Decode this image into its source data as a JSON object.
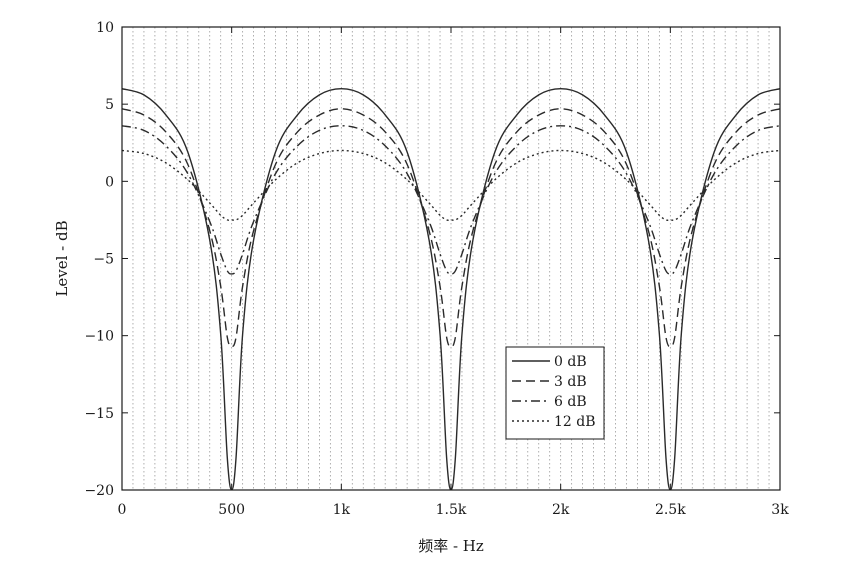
{
  "chart_data": {
    "type": "line",
    "xlabel": "频率 - Hz",
    "ylabel": "Level - dB",
    "xlim": [
      0,
      3000
    ],
    "ylim": [
      -20,
      10
    ],
    "x_ticks": [
      0,
      500,
      1000,
      1500,
      2000,
      2500,
      3000
    ],
    "x_tick_labels": [
      "0",
      "500",
      "1k",
      "1.5k",
      "2k",
      "2.5k",
      "3k"
    ],
    "y_ticks": [
      -20,
      -15,
      -10,
      -5,
      0,
      5,
      10
    ],
    "y_tick_labels": [
      "−20",
      "−15",
      "−10",
      "−5",
      "0",
      "5",
      "10"
    ],
    "grid": "vertical dotted lines every 50 Hz",
    "legend_position": "lower-right",
    "x": [
      0,
      100,
      200,
      300,
      400,
      450,
      480,
      500,
      520,
      550,
      600,
      700,
      800,
      900,
      1000,
      1100,
      1200,
      1300,
      1400,
      1450,
      1480,
      1500,
      1520,
      1550,
      1600,
      1700,
      1800,
      1900,
      2000,
      2100,
      2200,
      2300,
      2400,
      2450,
      2480,
      2500,
      2520,
      2550,
      2600,
      2700,
      2800,
      2900,
      3000
    ],
    "series": [
      {
        "name": "0 dB",
        "color": "#2a2a2a",
        "dash": "solid",
        "values": [
          6.0,
          5.6,
          4.3,
          1.9,
          -3.8,
          -9.9,
          -17.9,
          -20,
          -17.9,
          -9.9,
          -3.8,
          1.9,
          4.3,
          5.6,
          6.0,
          5.6,
          4.3,
          1.9,
          -3.8,
          -9.9,
          -17.9,
          -20,
          -17.9,
          -9.9,
          -3.8,
          1.9,
          4.3,
          5.6,
          6.0,
          5.6,
          4.3,
          1.9,
          -3.8,
          -9.9,
          -17.9,
          -20,
          -17.9,
          -9.9,
          -3.8,
          1.9,
          4.3,
          5.6,
          6.0
        ]
      },
      {
        "name": "3 dB",
        "color": "#2a2a2a",
        "dash": "dashed",
        "values": [
          4.7,
          4.3,
          3.2,
          1.1,
          -3.2,
          -6.8,
          -10.1,
          -10.7,
          -10.1,
          -6.8,
          -3.2,
          1.1,
          3.2,
          4.3,
          4.7,
          4.3,
          3.2,
          1.1,
          -3.2,
          -6.8,
          -10.1,
          -10.7,
          -10.1,
          -6.8,
          -3.2,
          1.1,
          3.2,
          4.3,
          4.7,
          4.3,
          3.2,
          1.1,
          -3.2,
          -6.8,
          -10.1,
          -10.7,
          -10.1,
          -6.8,
          -3.2,
          1.1,
          3.2,
          4.3,
          4.7
        ]
      },
      {
        "name": "6 dB",
        "color": "#2a2a2a",
        "dash": "dashdot",
        "values": [
          3.6,
          3.3,
          2.3,
          0.5,
          -2.6,
          -4.7,
          -5.8,
          -6.0,
          -5.8,
          -4.7,
          -2.6,
          0.5,
          2.3,
          3.3,
          3.6,
          3.3,
          2.3,
          0.5,
          -2.6,
          -4.7,
          -5.8,
          -6.0,
          -5.8,
          -4.7,
          -2.6,
          0.5,
          2.3,
          3.3,
          3.6,
          3.3,
          2.3,
          0.5,
          -2.6,
          -4.7,
          -5.8,
          -6.0,
          -5.8,
          -4.7,
          -2.6,
          0.5,
          2.3,
          3.3,
          3.6
        ]
      },
      {
        "name": "12 dB",
        "color": "#2a2a2a",
        "dash": "dotted",
        "values": [
          2.0,
          1.8,
          1.2,
          0.1,
          -1.4,
          -2.2,
          -2.5,
          -2.5,
          -2.5,
          -2.2,
          -1.4,
          0.1,
          1.2,
          1.8,
          2.0,
          1.8,
          1.2,
          0.1,
          -1.4,
          -2.2,
          -2.5,
          -2.5,
          -2.5,
          -2.2,
          -1.4,
          0.1,
          1.2,
          1.8,
          2.0,
          1.8,
          1.2,
          0.1,
          -1.4,
          -2.2,
          -2.5,
          -2.5,
          -2.5,
          -2.2,
          -1.4,
          0.1,
          1.2,
          1.8,
          2.0
        ]
      }
    ]
  }
}
